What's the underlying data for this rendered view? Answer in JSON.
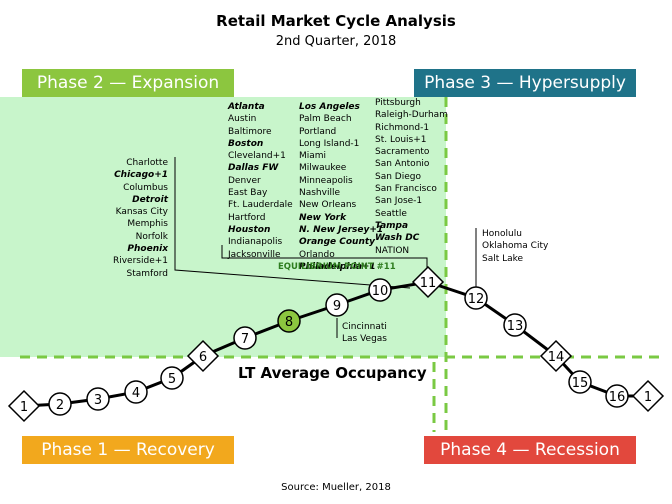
{
  "title": "Retail Market Cycle Analysis",
  "subtitle": "2nd Quarter, 2018",
  "phases": {
    "phase2": "Phase 2 — Expansion",
    "phase3": "Phase 3 — Hypersupply",
    "phase1": "Phase 1 — Recovery",
    "phase4": "Phase 4 — Recession"
  },
  "lt_average_label": "LT Average Occupancy",
  "equilibrium_label": "EQUILIBRIUM POINT #11",
  "source": "Source: Mueller, 2018",
  "colors": {
    "expansion": "#8cc63f",
    "expansion_zone": "#c8f5cb",
    "hypersupply": "#1f7389",
    "recovery": "#f2a81d",
    "recession": "#e2483d",
    "dashed_line": "#7ac943",
    "highlight_point": "#8cc63f"
  },
  "cycle_points": [
    {
      "label": "1",
      "shape": "diamond"
    },
    {
      "label": "2",
      "shape": "circle"
    },
    {
      "label": "3",
      "shape": "circle"
    },
    {
      "label": "4",
      "shape": "circle"
    },
    {
      "label": "5",
      "shape": "circle"
    },
    {
      "label": "6",
      "shape": "diamond"
    },
    {
      "label": "7",
      "shape": "circle"
    },
    {
      "label": "8",
      "shape": "circle",
      "highlight": true
    },
    {
      "label": "9",
      "shape": "circle"
    },
    {
      "label": "10",
      "shape": "circle"
    },
    {
      "label": "11",
      "shape": "diamond"
    },
    {
      "label": "12",
      "shape": "circle"
    },
    {
      "label": "13",
      "shape": "circle"
    },
    {
      "label": "14",
      "shape": "diamond"
    },
    {
      "label": "15",
      "shape": "circle"
    },
    {
      "label": "16",
      "shape": "circle"
    },
    {
      "label": "1",
      "shape": "diamond"
    }
  ],
  "markets": {
    "point7": [
      {
        "name": "Charlotte",
        "bold": false
      },
      {
        "name": "Chicago+1",
        "bold": true
      },
      {
        "name": "Columbus",
        "bold": false
      },
      {
        "name": "Detroit",
        "bold": true
      },
      {
        "name": "Kansas City",
        "bold": false
      },
      {
        "name": "Memphis",
        "bold": false
      },
      {
        "name": "Norfolk",
        "bold": false
      },
      {
        "name": "Phoenix",
        "bold": true
      },
      {
        "name": "Riverside+1",
        "bold": false
      },
      {
        "name": "Stamford",
        "bold": false
      }
    ],
    "point11_a": [
      {
        "name": "Atlanta",
        "bold": true
      },
      {
        "name": "Austin",
        "bold": false
      },
      {
        "name": "Baltimore",
        "bold": false
      },
      {
        "name": "Boston",
        "bold": true
      },
      {
        "name": "Cleveland+1",
        "bold": false
      },
      {
        "name": "Dallas FW",
        "bold": true
      },
      {
        "name": "Denver",
        "bold": false
      },
      {
        "name": "East Bay",
        "bold": false
      },
      {
        "name": "Ft. Lauderdale",
        "bold": false
      },
      {
        "name": "Hartford",
        "bold": false
      },
      {
        "name": "Houston",
        "bold": true
      },
      {
        "name": "Indianapolis",
        "bold": false
      },
      {
        "name": "Jacksonville",
        "bold": false
      }
    ],
    "point11_b": [
      {
        "name": "Los Angeles",
        "bold": true
      },
      {
        "name": "Palm Beach",
        "bold": false
      },
      {
        "name": "Portland",
        "bold": false
      },
      {
        "name": "Long Island-1",
        "bold": false
      },
      {
        "name": "Miami",
        "bold": false
      },
      {
        "name": "Milwaukee",
        "bold": false
      },
      {
        "name": "Minneapolis",
        "bold": false
      },
      {
        "name": "Nashville",
        "bold": false
      },
      {
        "name": "New Orleans",
        "bold": false
      },
      {
        "name": "New York",
        "bold": true
      },
      {
        "name": "N. New Jersey+1",
        "bold": true
      },
      {
        "name": "Orange County",
        "bold": true
      },
      {
        "name": "Orlando",
        "bold": false
      },
      {
        "name": "Philadelphia+1",
        "bold": true
      }
    ],
    "point11_c": [
      {
        "name": "Pittsburgh",
        "bold": false
      },
      {
        "name": "Raleigh-Durham",
        "bold": false
      },
      {
        "name": "Richmond-1",
        "bold": false
      },
      {
        "name": "St. Louis+1",
        "bold": false
      },
      {
        "name": "Sacramento",
        "bold": false
      },
      {
        "name": "San Antonio",
        "bold": false
      },
      {
        "name": "San Diego",
        "bold": false
      },
      {
        "name": "San Francisco",
        "bold": false
      },
      {
        "name": "San Jose-1",
        "bold": false
      },
      {
        "name": "Seattle",
        "bold": false
      },
      {
        "name": "Tampa",
        "bold": true
      },
      {
        "name": "Wash DC",
        "bold": true
      },
      {
        "name": "NATION",
        "bold": false
      }
    ],
    "point9": [
      {
        "name": "Cincinnati",
        "bold": false
      },
      {
        "name": "Las Vegas",
        "bold": false
      }
    ],
    "point12": [
      {
        "name": "Honolulu",
        "bold": false
      },
      {
        "name": "Oklahoma City",
        "bold": false
      },
      {
        "name": "Salt Lake",
        "bold": false
      }
    ]
  }
}
